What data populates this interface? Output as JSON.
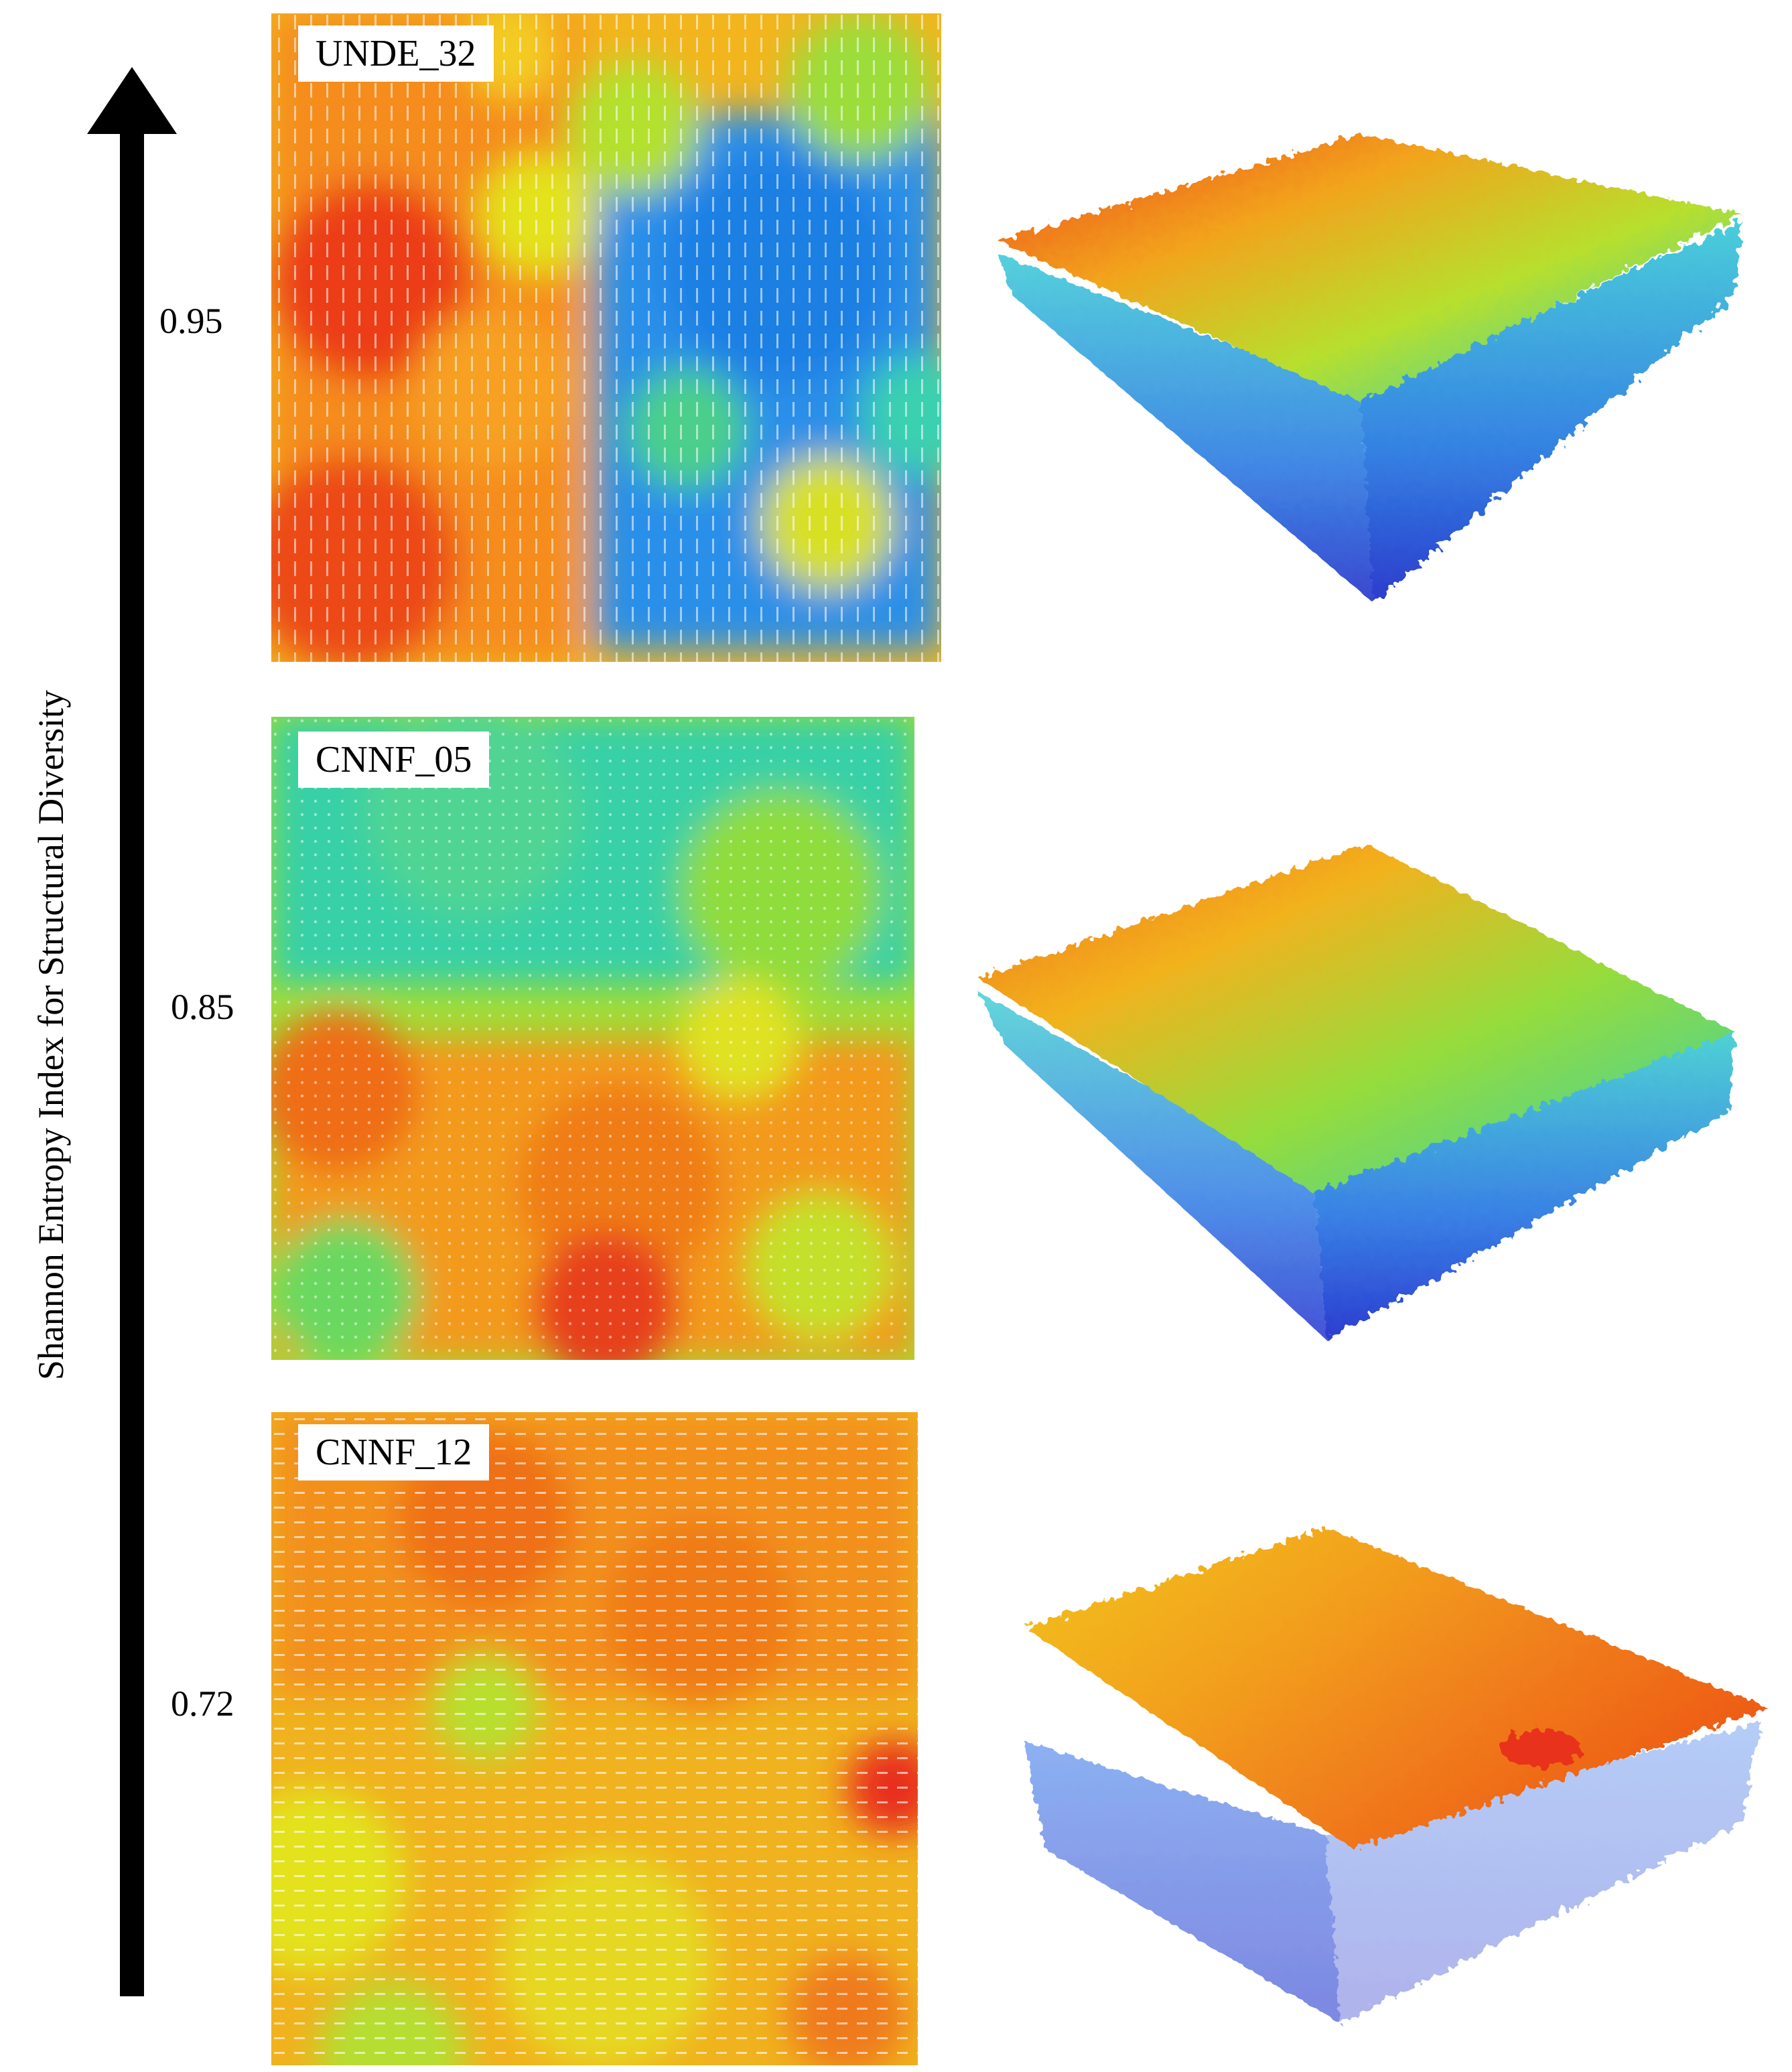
{
  "axis": {
    "label": "Shannon Entropy Index for Structural Diversity"
  },
  "plots": [
    {
      "id": "UNDE_32",
      "value": "0.95"
    },
    {
      "id": "CNNF_05",
      "value": "0.85"
    },
    {
      "id": "CNNF_12",
      "value": "0.72"
    }
  ],
  "colors": {
    "high": "#e8201a",
    "orange": "#f47a1c",
    "yellow": "#e9e71c",
    "green": "#7cdc45",
    "cyan": "#2fd3b9",
    "blue": "#1e8fe6",
    "deep_blue": "#1426c9"
  }
}
